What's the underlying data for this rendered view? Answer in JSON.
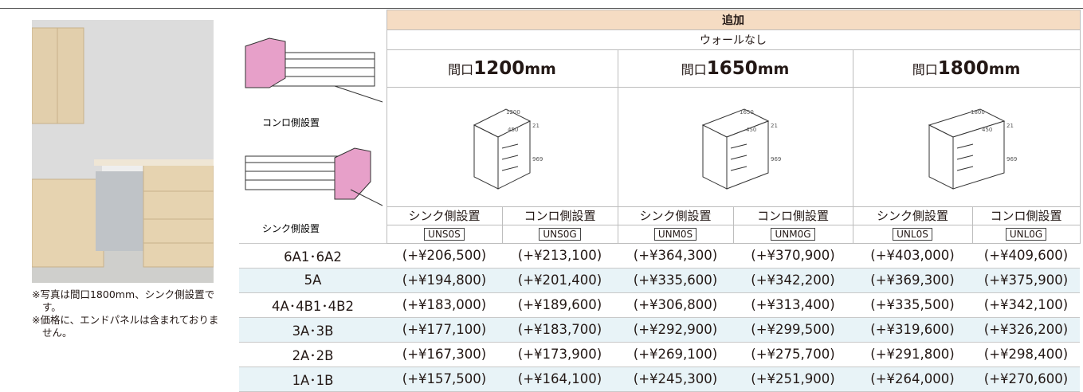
{
  "photo_captions": [
    "※写真は間口1800mm、シンク側設置です。",
    "※価格に、エンドパネルは含まれておりません。"
  ],
  "table": {
    "title": "追加",
    "subtitle": "ウォールなし",
    "layouts": [
      "コンロ側設置",
      "シンク側設置"
    ],
    "widths": [
      {
        "prefix": "間口",
        "size": "1200",
        "unit": "mm",
        "dims": [
          "1200",
          "450",
          "21",
          "969"
        ]
      },
      {
        "prefix": "間口",
        "size": "1650",
        "unit": "mm",
        "dims": [
          "1650",
          "450",
          "21",
          "969"
        ]
      },
      {
        "prefix": "間口",
        "size": "1800",
        "unit": "mm",
        "dims": [
          "1800",
          "450",
          "21",
          "969"
        ]
      }
    ],
    "columns": [
      {
        "label": "シンク側設置",
        "code": "UNS0S"
      },
      {
        "label": "コンロ側設置",
        "code": "UNS0G"
      },
      {
        "label": "シンク側設置",
        "code": "UNM0S"
      },
      {
        "label": "コンロ側設置",
        "code": "UNM0G"
      },
      {
        "label": "シンク側設置",
        "code": "UNL0S"
      },
      {
        "label": "コンロ側設置",
        "code": "UNL0G"
      }
    ],
    "rows": [
      {
        "model": "6A1･6A2",
        "prices": [
          "(+¥206,500)",
          "(+¥213,100)",
          "(+¥364,300)",
          "(+¥370,900)",
          "(+¥403,000)",
          "(+¥409,600)"
        ]
      },
      {
        "model": "5A",
        "prices": [
          "(+¥194,800)",
          "(+¥201,400)",
          "(+¥335,600)",
          "(+¥342,200)",
          "(+¥369,300)",
          "(+¥375,900)"
        ]
      },
      {
        "model": "4A･4B1･4B2",
        "prices": [
          "(+¥183,000)",
          "(+¥189,600)",
          "(+¥306,800)",
          "(+¥313,400)",
          "(+¥335,500)",
          "(+¥342,100)"
        ]
      },
      {
        "model": "3A･3B",
        "prices": [
          "(+¥177,100)",
          "(+¥183,700)",
          "(+¥292,900)",
          "(+¥299,500)",
          "(+¥319,600)",
          "(+¥326,200)"
        ]
      },
      {
        "model": "2A･2B",
        "prices": [
          "(+¥167,300)",
          "(+¥173,900)",
          "(+¥269,100)",
          "(+¥275,700)",
          "(+¥291,800)",
          "(+¥298,400)"
        ]
      },
      {
        "model": "1A･1B",
        "prices": [
          "(+¥157,500)",
          "(+¥164,100)",
          "(+¥245,300)",
          "(+¥251,900)",
          "(+¥264,000)",
          "(+¥270,600)"
        ]
      }
    ]
  }
}
